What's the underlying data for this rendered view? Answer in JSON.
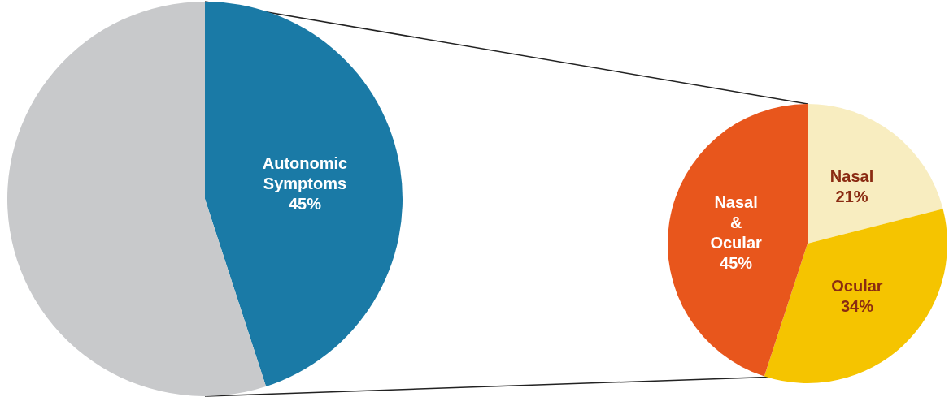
{
  "chart_data": [
    {
      "type": "pie",
      "categories": [
        "Autonomic Symptoms",
        null
      ],
      "values": [
        45,
        55
      ],
      "value_labels": [
        "45%",
        null
      ],
      "colors": [
        "#1a7aa6",
        "#c8c9cb"
      ]
    },
    {
      "type": "pie",
      "categories": [
        "Nasal",
        "Ocular",
        "Nasal & Ocular"
      ],
      "values": [
        21,
        34,
        45
      ],
      "value_labels": [
        "21%",
        "34%",
        "45%"
      ],
      "colors": [
        "#f8edc0",
        "#f5c400",
        "#e8561c"
      ]
    }
  ]
}
